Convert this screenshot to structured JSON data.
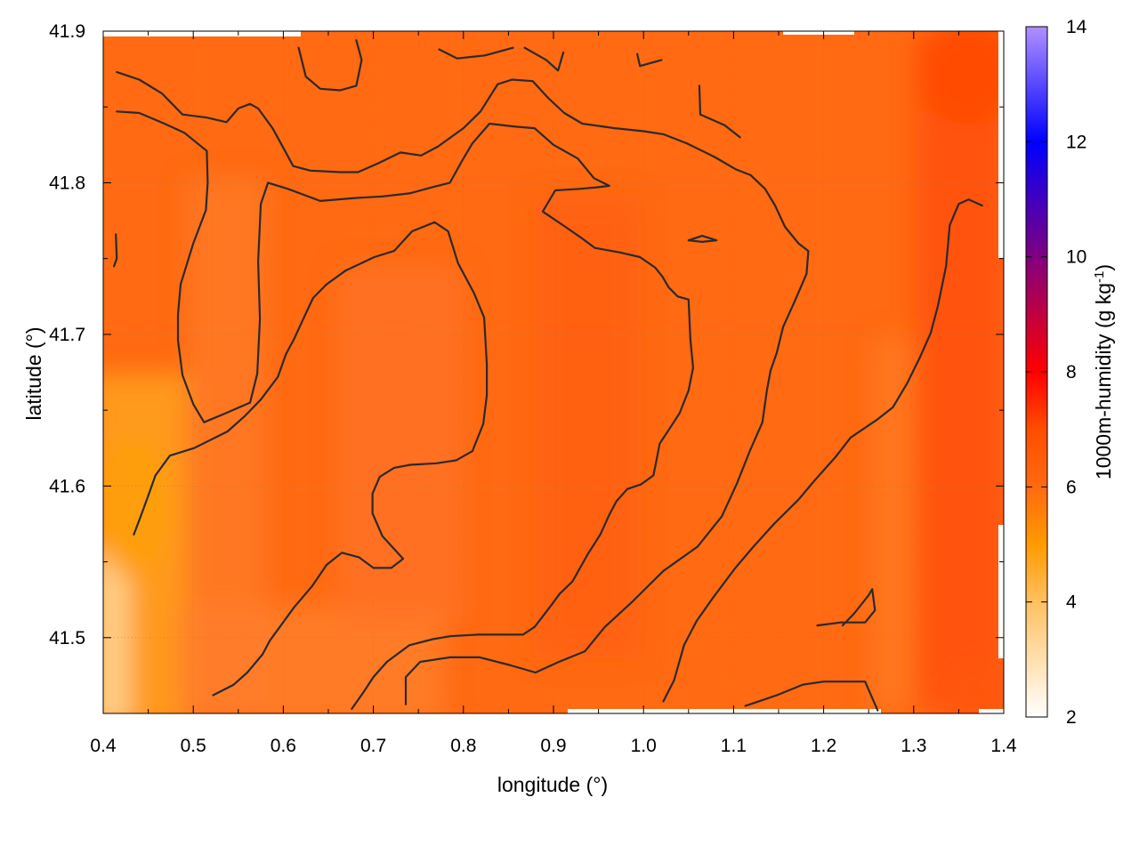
{
  "chart_data": {
    "type": "heatmap",
    "title": "",
    "xlabel": "longitude (°)",
    "ylabel": "latitude (°)",
    "colorbar_label_main": "1000m-humidity (g kg",
    "colorbar_label_exp": "-1",
    "colorbar_label_end": ")",
    "xlim": [
      0.4,
      1.4
    ],
    "ylim": [
      41.45,
      41.9
    ],
    "x_ticks": [
      0.4,
      0.5,
      0.6,
      0.7,
      0.8,
      0.9,
      1.0,
      1.1,
      1.2,
      1.3,
      1.4
    ],
    "x_tick_labels": [
      "0.4",
      "0.5",
      "0.6",
      "0.7",
      "0.8",
      "0.9",
      "1.0",
      "1.1",
      "1.2",
      "1.3",
      "1.4"
    ],
    "y_ticks": [
      41.5,
      41.6,
      41.7,
      41.8,
      41.9
    ],
    "y_tick_labels": [
      "41.5",
      "41.6",
      "41.7",
      "41.8",
      "41.9"
    ],
    "colorbar_range": [
      2,
      14
    ],
    "colorbar_ticks": [
      2,
      4,
      6,
      8,
      10,
      12,
      14
    ],
    "colorbar_tick_labels": [
      "2",
      "4",
      "6",
      "8",
      "10",
      "12",
      "14"
    ],
    "colormap": [
      {
        "value": 2,
        "color": "#ffffff"
      },
      {
        "value": 4,
        "color": "#ffc060"
      },
      {
        "value": 5,
        "color": "#ff9a00"
      },
      {
        "value": 6,
        "color": "#ff6a10"
      },
      {
        "value": 7,
        "color": "#ff4d00"
      },
      {
        "value": 8,
        "color": "#ff0000"
      },
      {
        "value": 10,
        "color": "#800080"
      },
      {
        "value": 12,
        "color": "#0000ff"
      },
      {
        "value": 14,
        "color": "#b090ff"
      }
    ],
    "grid": true,
    "field_range_estimate": [
      4.2,
      6.8
    ],
    "contour_color": "#2a2a2a",
    "contours": [
      [
        [
          0.415,
          41.873
        ],
        [
          0.44,
          41.868
        ],
        [
          0.465,
          41.859
        ],
        [
          0.488,
          41.845
        ],
        [
          0.515,
          41.843
        ],
        [
          0.537,
          41.84
        ],
        [
          0.55,
          41.849
        ],
        [
          0.563,
          41.852
        ],
        [
          0.572,
          41.849
        ],
        [
          0.588,
          41.836
        ],
        [
          0.6,
          41.823
        ],
        [
          0.611,
          41.811
        ],
        [
          0.63,
          41.808
        ],
        [
          0.664,
          41.807
        ],
        [
          0.683,
          41.807
        ],
        [
          0.706,
          41.813
        ],
        [
          0.73,
          41.82
        ],
        [
          0.753,
          41.818
        ],
        [
          0.772,
          41.824
        ],
        [
          0.8,
          41.836
        ],
        [
          0.819,
          41.847
        ],
        [
          0.838,
          41.865
        ],
        [
          0.854,
          41.868
        ],
        [
          0.877,
          41.867
        ],
        [
          0.894,
          41.856
        ],
        [
          0.912,
          41.846
        ],
        [
          0.932,
          41.839
        ],
        [
          0.968,
          41.836
        ],
        [
          1.0,
          41.834
        ],
        [
          1.022,
          41.832
        ],
        [
          1.048,
          41.826
        ],
        [
          1.079,
          41.817
        ],
        [
          1.102,
          41.809
        ],
        [
          1.119,
          41.805
        ],
        [
          1.135,
          41.796
        ],
        [
          1.146,
          41.785
        ],
        [
          1.157,
          41.771
        ],
        [
          1.172,
          41.76
        ],
        [
          1.183,
          41.755
        ],
        [
          1.181,
          41.74
        ],
        [
          1.168,
          41.722
        ],
        [
          1.155,
          41.705
        ],
        [
          1.148,
          41.688
        ],
        [
          1.141,
          41.676
        ],
        [
          1.137,
          41.663
        ],
        [
          1.132,
          41.642
        ],
        [
          1.118,
          41.623
        ],
        [
          1.104,
          41.602
        ],
        [
          1.087,
          41.58
        ],
        [
          1.06,
          41.56
        ],
        [
          1.022,
          41.544
        ],
        [
          0.988,
          41.524
        ],
        [
          0.957,
          41.507
        ],
        [
          0.935,
          41.491
        ],
        [
          0.906,
          41.484
        ],
        [
          0.88,
          41.477
        ],
        [
          0.851,
          41.482
        ],
        [
          0.818,
          41.487
        ],
        [
          0.785,
          41.487
        ],
        [
          0.752,
          41.484
        ],
        [
          0.736,
          41.474
        ],
        [
          0.736,
          41.456
        ]
      ],
      [
        [
          0.415,
          41.847
        ],
        [
          0.44,
          41.846
        ],
        [
          0.468,
          41.839
        ],
        [
          0.49,
          41.833
        ],
        [
          0.515,
          41.821
        ],
        [
          0.516,
          41.8
        ],
        [
          0.514,
          41.782
        ],
        [
          0.5,
          41.76
        ],
        [
          0.486,
          41.733
        ],
        [
          0.483,
          41.713
        ],
        [
          0.483,
          41.696
        ],
        [
          0.488,
          41.673
        ],
        [
          0.5,
          41.654
        ],
        [
          0.512,
          41.642
        ],
        [
          0.536,
          41.648
        ],
        [
          0.563,
          41.655
        ],
        [
          0.571,
          41.674
        ],
        [
          0.574,
          41.71
        ],
        [
          0.572,
          41.748
        ],
        [
          0.575,
          41.786
        ],
        [
          0.583,
          41.8
        ],
        [
          0.605,
          41.796
        ],
        [
          0.641,
          41.788
        ],
        [
          0.681,
          41.79
        ],
        [
          0.71,
          41.791
        ],
        [
          0.74,
          41.793
        ],
        [
          0.765,
          41.797
        ],
        [
          0.785,
          41.8
        ],
        [
          0.798,
          41.814
        ],
        [
          0.81,
          41.826
        ],
        [
          0.829,
          41.839
        ],
        [
          0.858,
          41.837
        ],
        [
          0.879,
          41.836
        ],
        [
          0.9,
          41.825
        ],
        [
          0.927,
          41.816
        ],
        [
          0.945,
          41.803
        ],
        [
          0.962,
          41.798
        ],
        [
          0.948,
          41.797
        ],
        [
          0.929,
          41.796
        ],
        [
          0.902,
          41.795
        ],
        [
          0.888,
          41.781
        ],
        [
          0.913,
          41.771
        ],
        [
          0.93,
          41.764
        ],
        [
          0.946,
          41.757
        ],
        [
          0.974,
          41.754
        ],
        [
          0.996,
          41.751
        ],
        [
          1.013,
          41.744
        ],
        [
          1.021,
          41.738
        ],
        [
          1.028,
          41.731
        ],
        [
          1.038,
          41.725
        ],
        [
          1.05,
          41.723
        ],
        [
          1.052,
          41.697
        ],
        [
          1.055,
          41.678
        ],
        [
          1.05,
          41.663
        ],
        [
          1.04,
          41.648
        ],
        [
          1.028,
          41.637
        ],
        [
          1.018,
          41.628
        ],
        [
          1.014,
          41.616
        ],
        [
          1.011,
          41.607
        ],
        [
          0.997,
          41.601
        ],
        [
          0.982,
          41.598
        ],
        [
          0.97,
          41.59
        ],
        [
          0.962,
          41.581
        ],
        [
          0.952,
          41.568
        ],
        [
          0.938,
          41.555
        ],
        [
          0.921,
          41.537
        ],
        [
          0.907,
          41.529
        ],
        [
          0.897,
          41.521
        ],
        [
          0.888,
          41.514
        ],
        [
          0.879,
          41.507
        ],
        [
          0.866,
          41.502
        ],
        [
          0.843,
          41.502
        ],
        [
          0.816,
          41.502
        ],
        [
          0.786,
          41.501
        ],
        [
          0.766,
          41.499
        ],
        [
          0.74,
          41.495
        ],
        [
          0.715,
          41.484
        ],
        [
          0.7,
          41.474
        ],
        [
          0.689,
          41.464
        ],
        [
          0.676,
          41.453
        ]
      ],
      [
        [
          0.434,
          41.568
        ],
        [
          0.441,
          41.579
        ],
        [
          0.449,
          41.592
        ],
        [
          0.458,
          41.607
        ],
        [
          0.474,
          41.62
        ],
        [
          0.501,
          41.625
        ],
        [
          0.538,
          41.636
        ],
        [
          0.557,
          41.646
        ],
        [
          0.575,
          41.657
        ],
        [
          0.594,
          41.672
        ],
        [
          0.603,
          41.687
        ],
        [
          0.612,
          41.697
        ],
        [
          0.622,
          41.71
        ],
        [
          0.633,
          41.724
        ],
        [
          0.648,
          41.733
        ],
        [
          0.669,
          41.742
        ],
        [
          0.701,
          41.751
        ],
        [
          0.723,
          41.755
        ],
        [
          0.743,
          41.768
        ],
        [
          0.768,
          41.774
        ],
        [
          0.783,
          41.768
        ],
        [
          0.794,
          41.747
        ],
        [
          0.812,
          41.727
        ],
        [
          0.823,
          41.711
        ],
        [
          0.826,
          41.68
        ],
        [
          0.826,
          41.66
        ],
        [
          0.822,
          41.641
        ],
        [
          0.81,
          41.623
        ],
        [
          0.792,
          41.617
        ],
        [
          0.77,
          41.615
        ],
        [
          0.741,
          41.614
        ],
        [
          0.723,
          41.612
        ],
        [
          0.707,
          41.606
        ],
        [
          0.699,
          41.595
        ],
        [
          0.699,
          41.582
        ],
        [
          0.71,
          41.567
        ],
        [
          0.733,
          41.552
        ],
        [
          0.72,
          41.546
        ],
        [
          0.7,
          41.546
        ],
        [
          0.684,
          41.553
        ],
        [
          0.665,
          41.556
        ],
        [
          0.648,
          41.548
        ],
        [
          0.632,
          41.534
        ],
        [
          0.612,
          41.52
        ],
        [
          0.596,
          41.507
        ],
        [
          0.585,
          41.498
        ],
        [
          0.577,
          41.489
        ],
        [
          0.56,
          41.477
        ],
        [
          0.545,
          41.469
        ],
        [
          0.522,
          41.462
        ]
      ],
      [
        [
          1.022,
          41.458
        ],
        [
          1.034,
          41.472
        ],
        [
          1.045,
          41.495
        ],
        [
          1.059,
          41.511
        ],
        [
          1.078,
          41.527
        ],
        [
          1.102,
          41.546
        ],
        [
          1.122,
          41.56
        ],
        [
          1.145,
          41.575
        ],
        [
          1.172,
          41.591
        ],
        [
          1.189,
          41.603
        ],
        [
          1.213,
          41.619
        ],
        [
          1.23,
          41.632
        ],
        [
          1.26,
          41.644
        ],
        [
          1.277,
          41.652
        ],
        [
          1.293,
          41.668
        ],
        [
          1.307,
          41.685
        ],
        [
          1.319,
          41.701
        ],
        [
          1.327,
          41.719
        ],
        [
          1.336,
          41.745
        ],
        [
          1.34,
          41.772
        ],
        [
          1.35,
          41.786
        ],
        [
          1.361,
          41.789
        ],
        [
          1.376,
          41.785
        ]
      ],
      [
        [
          1.113,
          41.455
        ],
        [
          1.128,
          41.458
        ],
        [
          1.148,
          41.462
        ],
        [
          1.177,
          41.469
        ],
        [
          1.2,
          41.471
        ],
        [
          1.222,
          41.471
        ],
        [
          1.246,
          41.471
        ],
        [
          1.26,
          41.452
        ]
      ],
      [
        [
          1.193,
          41.508
        ],
        [
          1.219,
          41.51
        ],
        [
          1.246,
          41.51
        ],
        [
          1.257,
          41.518
        ],
        [
          1.254,
          41.532
        ],
        [
          1.25,
          41.528
        ],
        [
          1.234,
          41.516
        ],
        [
          1.221,
          41.508
        ]
      ],
      [
        [
          1.062,
          41.864
        ],
        [
          1.063,
          41.845
        ],
        [
          1.09,
          41.838
        ],
        [
          1.107,
          41.83
        ]
      ],
      [
        [
          0.617,
          41.889
        ],
        [
          0.625,
          41.87
        ],
        [
          0.641,
          41.862
        ],
        [
          0.663,
          41.861
        ],
        [
          0.681,
          41.864
        ],
        [
          0.687,
          41.881
        ],
        [
          0.681,
          41.894
        ]
      ],
      [
        [
          0.773,
          41.888
        ],
        [
          0.793,
          41.882
        ],
        [
          0.824,
          41.884
        ],
        [
          0.855,
          41.889
        ]
      ],
      [
        [
          0.868,
          41.889
        ],
        [
          0.892,
          41.881
        ],
        [
          0.905,
          41.874
        ],
        [
          0.911,
          41.886
        ]
      ],
      [
        [
          0.993,
          41.885
        ],
        [
          0.996,
          41.877
        ],
        [
          1.02,
          41.881
        ]
      ],
      [
        [
          0.414,
          41.766
        ],
        [
          0.415,
          41.75
        ],
        [
          0.412,
          41.745
        ]
      ],
      [
        [
          1.05,
          41.762
        ],
        [
          1.065,
          41.765
        ],
        [
          1.081,
          41.762
        ],
        [
          1.065,
          41.761
        ],
        [
          1.05,
          41.762
        ]
      ]
    ]
  }
}
